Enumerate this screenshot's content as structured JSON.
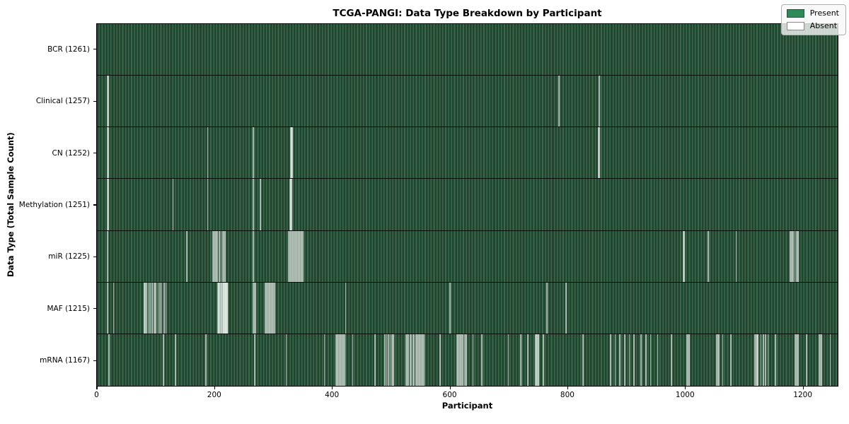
{
  "figure": {
    "background": "#ffffff"
  },
  "chart_data": {
    "type": "heatmap",
    "title": "TCGA-PANGI: Data Type Breakdown by Participant",
    "xlabel": "Participant",
    "ylabel": "Data Type (Total Sample Count)",
    "n_participants": 1261,
    "x_ticks": [
      0,
      200,
      400,
      600,
      800,
      1000,
      1200
    ],
    "grid": false,
    "legend": {
      "position": "upper right",
      "items": [
        {
          "label": "Present",
          "color": "#2e8b57"
        },
        {
          "label": "Absent",
          "color": "#ffffff"
        }
      ]
    },
    "colors": {
      "present_fill": "#2e8b57",
      "bar_edge": "#1c2e22",
      "row_texture_dark": "#24432e",
      "row_texture_light": "#356b4c",
      "absent_overlay": "#ffffff"
    },
    "rows": [
      {
        "label": "BCR",
        "total": 1261,
        "absent_count": 0,
        "absent": []
      },
      {
        "label": "Clinical",
        "total": 1257,
        "absent_count": 4,
        "absent": [
          18,
          19,
          786,
          855
        ]
      },
      {
        "label": "CN",
        "total": 1252,
        "absent_count": 9,
        "absent": [
          18,
          19,
          188,
          266,
          330,
          331,
          332,
          854,
          855
        ]
      },
      {
        "label": "Methylation",
        "total": 1251,
        "absent_count": 10,
        "absent": [
          18,
          19,
          129,
          188,
          266,
          278,
          328,
          329,
          330,
          331
        ]
      },
      {
        "label": "miR",
        "total": 1225,
        "absent_count": 36,
        "absent": [
          18,
          153,
          197,
          199,
          201,
          203,
          205,
          208,
          211,
          214,
          216,
          218,
          266,
          326,
          328,
          330,
          332,
          334,
          336,
          338,
          340,
          342,
          344,
          346,
          348,
          350,
          998,
          999,
          1040,
          1088,
          1180,
          1182,
          1185,
          1188,
          1191,
          1193
        ]
      },
      {
        "label": "MAF",
        "total": 1215,
        "absent_count": 46,
        "absent": [
          18,
          28,
          80,
          82,
          84,
          87,
          90,
          94,
          97,
          100,
          104,
          107,
          110,
          114,
          117,
          206,
          207,
          208,
          210,
          211,
          212,
          214,
          215,
          216,
          217,
          218,
          219,
          220,
          221,
          222,
          266,
          268,
          270,
          286,
          288,
          290,
          292,
          294,
          296,
          298,
          300,
          302,
          423,
          601,
          766,
          798
        ]
      },
      {
        "label": "mRNA",
        "total": 1167,
        "absent_count": 94,
        "absent": [
          20,
          113,
          133,
          185,
          268,
          322,
          387,
          407,
          409,
          411,
          413,
          415,
          417,
          419,
          421,
          435,
          473,
          490,
          493,
          496,
          499,
          502,
          504,
          526,
          528,
          530,
          533,
          535,
          538,
          540,
          543,
          545,
          548,
          550,
          552,
          554,
          556,
          584,
          613,
          615,
          617,
          619,
          621,
          623,
          626,
          628,
          640,
          655,
          700,
          721,
          733,
          746,
          748,
          750,
          751,
          760,
          827,
          874,
          882,
          890,
          898,
          906,
          914,
          926,
          934,
          942,
          954,
          978,
          1004,
          1006,
          1008,
          1055,
          1057,
          1059,
          1065,
          1079,
          1119,
          1121,
          1123,
          1125,
          1130,
          1134,
          1138,
          1142,
          1155,
          1188,
          1190,
          1192,
          1194,
          1208,
          1229,
          1231,
          1233,
          1248
        ]
      }
    ]
  }
}
